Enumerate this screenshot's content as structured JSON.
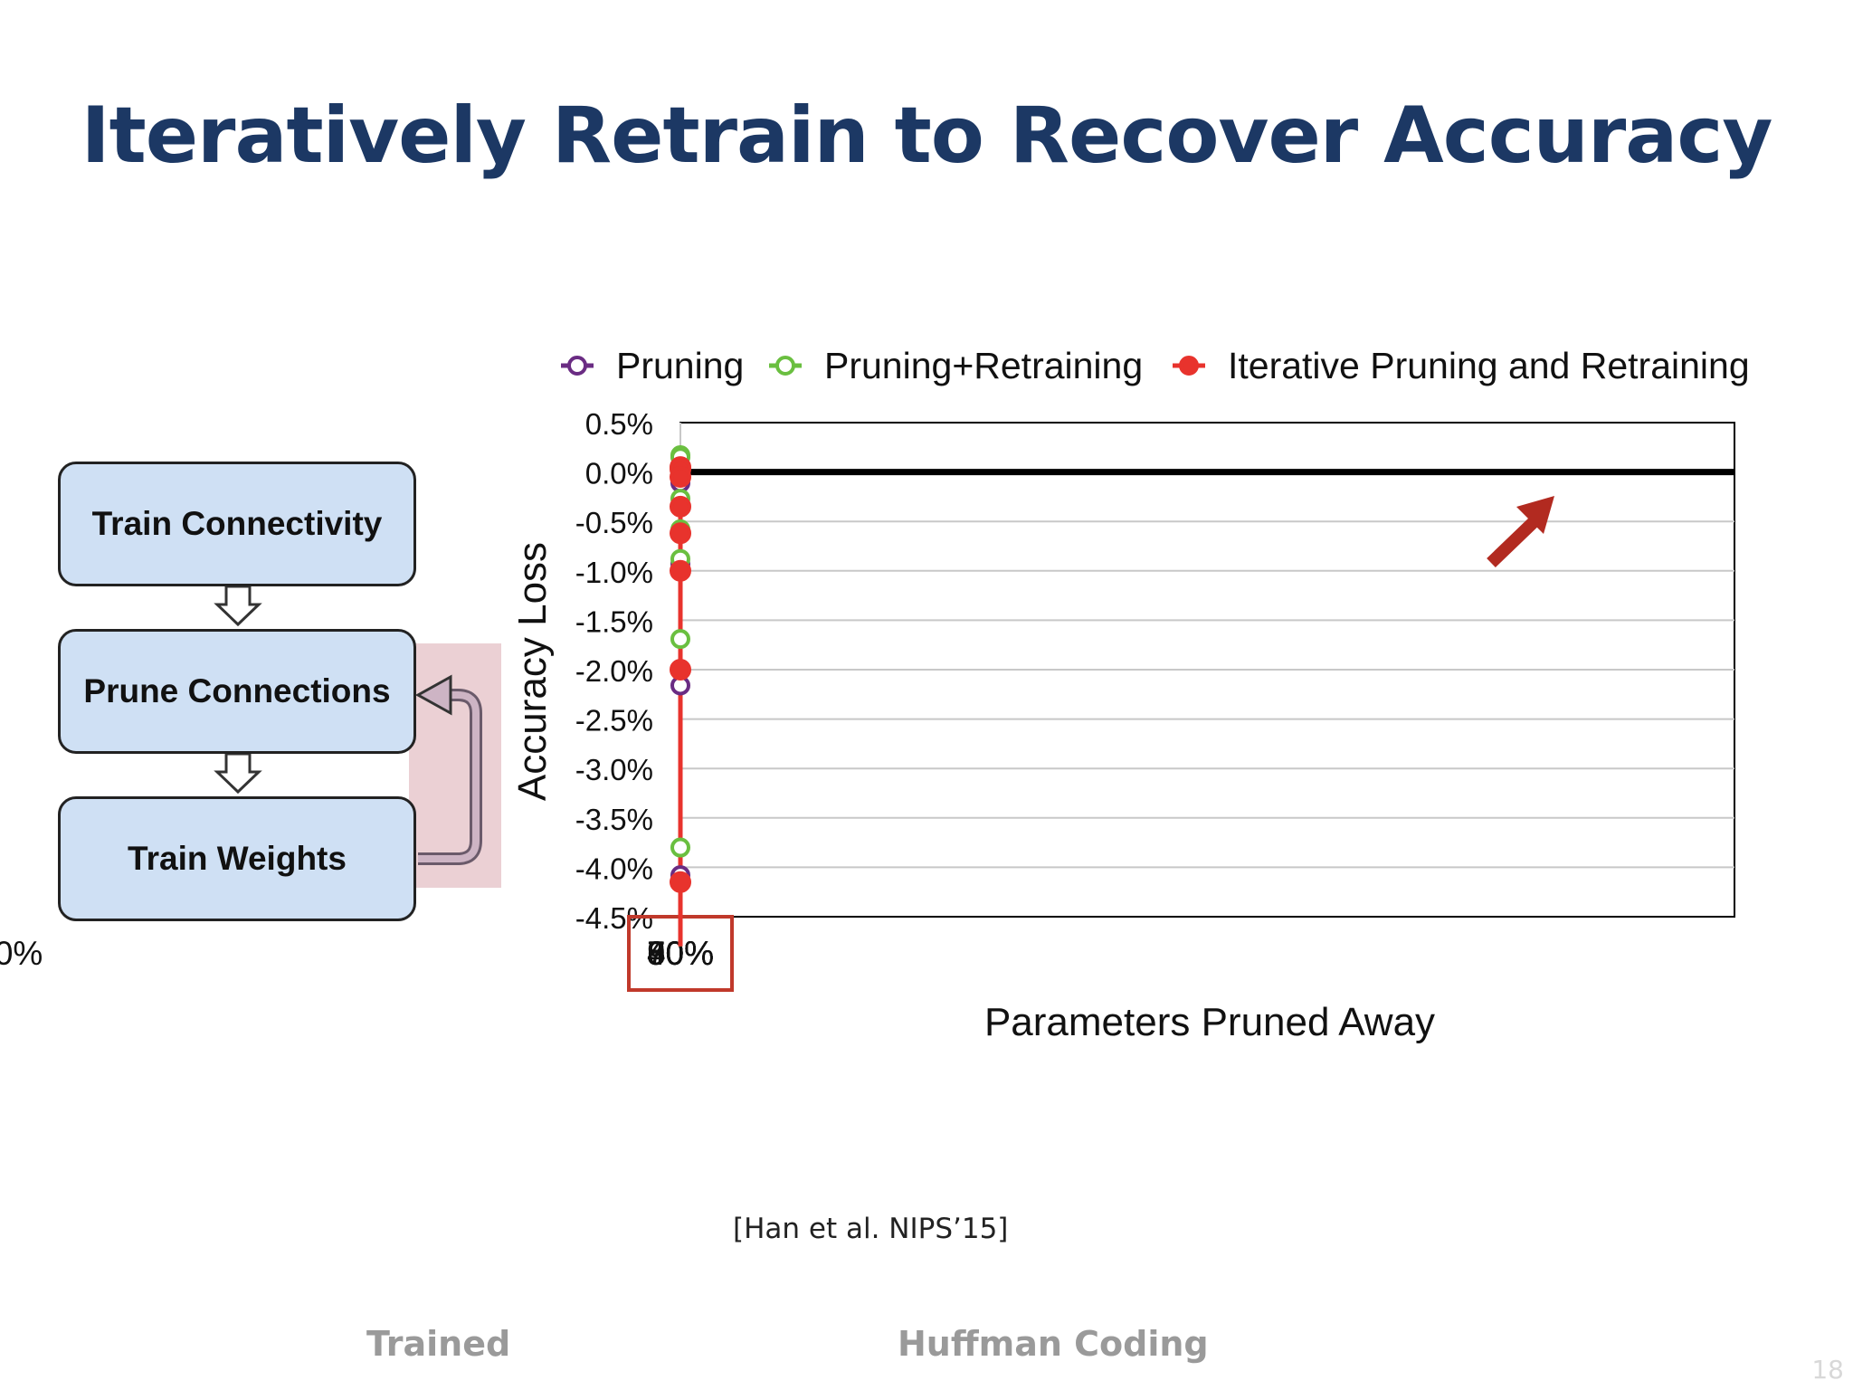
{
  "slide": {
    "title": "Iteratively Retrain to Recover Accuracy",
    "citation": "[Han et al. NIPS’15]",
    "footer_left": "Trained",
    "footer_center": "Huffman Coding",
    "page_number": "18"
  },
  "flow": {
    "steps": [
      "Train Connectivity",
      "Prune Connections",
      "Train Weights"
    ],
    "loop_highlight_color": "#e8c8cc"
  },
  "chart_data": {
    "type": "line",
    "title": "",
    "xlabel": "Parameters Pruned Away",
    "ylabel": "Accuracy Loss",
    "xlim": [
      40,
      100
    ],
    "ylim": [
      -4.5,
      0.5
    ],
    "x_ticks": [
      40,
      50,
      60,
      70,
      80,
      90,
      100
    ],
    "x_tick_labels": [
      "40%",
      "50%",
      "60%",
      "70%",
      "80%",
      "90%",
      "100%"
    ],
    "y_ticks": [
      0.5,
      0.0,
      -0.5,
      -1.0,
      -1.5,
      -2.0,
      -2.5,
      -3.0,
      -3.5,
      -4.0,
      -4.5
    ],
    "y_tick_labels": [
      "0.5%",
      "0.0%",
      "-0.5%",
      "-1.0%",
      "-1.5%",
      "-2.0%",
      "-2.5%",
      "-3.0%",
      "-3.5%",
      "-4.0%",
      "-4.5%"
    ],
    "grid": true,
    "legend_position": "top",
    "reference_line_y": 0,
    "highlighted_tick": "90%",
    "highlight_color": "#c0392b",
    "series": [
      {
        "name": "Pruning",
        "color": "#6a2c83",
        "marker": "open-circle",
        "line_style": "dashed",
        "x": [
          50,
          66.5,
          75,
          81.5
        ],
        "y": [
          -0.11,
          -0.93,
          -2.16,
          -4.08
        ]
      },
      {
        "name": "Pruning+Retraining",
        "color": "#6abf40",
        "marker": "open-circle",
        "line_style": "solid",
        "x": [
          50,
          66.5,
          75,
          81.5,
          85.5,
          88,
          89.5,
          90,
          93
        ],
        "y": [
          0.03,
          0.17,
          0.15,
          0.01,
          -0.27,
          -0.58,
          -0.88,
          -1.69,
          -3.8
        ]
      },
      {
        "name": "Iterative Pruning and Retraining",
        "color": "#e8332d",
        "marker": "filled-circle",
        "line_style": "solid",
        "x": [
          89.5,
          90.5,
          91,
          91.8,
          92.3,
          93,
          94,
          95
        ],
        "y": [
          0.05,
          0.03,
          -0.05,
          -0.35,
          -0.62,
          -1.0,
          -2.0,
          -4.15
        ]
      }
    ]
  }
}
